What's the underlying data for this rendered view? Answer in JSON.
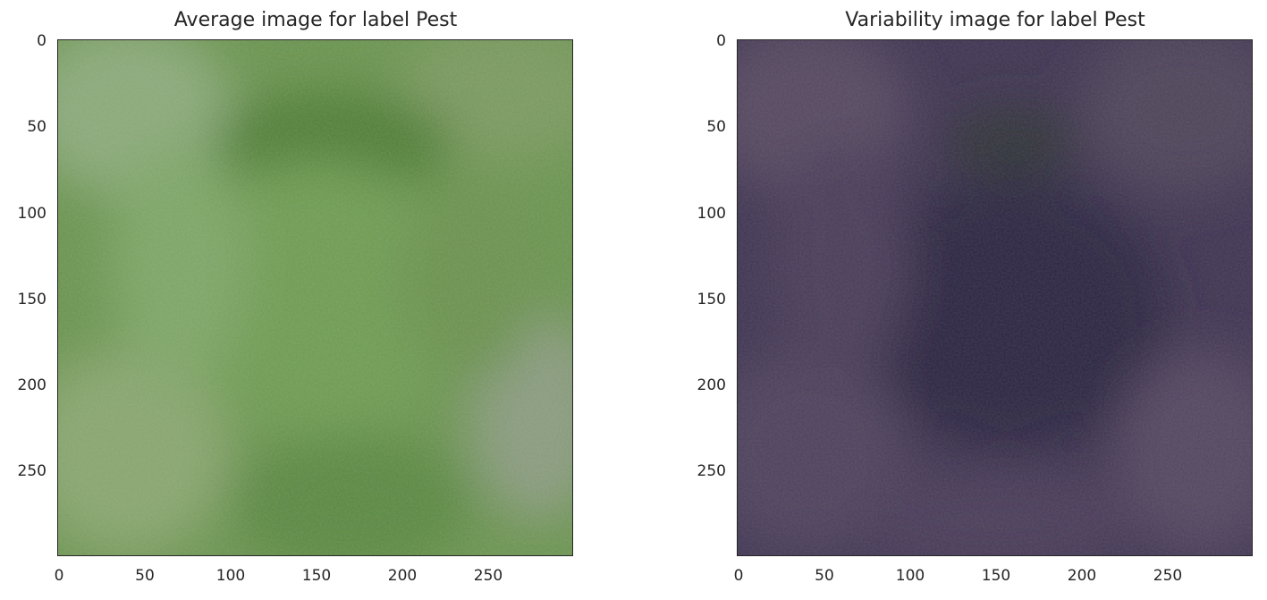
{
  "panels": [
    {
      "title": "Average image for label Pest",
      "image_description": "blurry average of green grass/leaf images",
      "xticks": [
        "0",
        "50",
        "100",
        "150",
        "200",
        "250"
      ],
      "yticks": [
        "0",
        "50",
        "100",
        "150",
        "200",
        "250"
      ],
      "colors": {
        "base": "#6a9250",
        "light": "#8aa87a",
        "dark": "#4e7a36",
        "edge": "#5e7a48"
      }
    },
    {
      "title": "Variability image for label Pest",
      "image_description": "dark purple standard-deviation image",
      "xticks": [
        "0",
        "50",
        "100",
        "150",
        "200",
        "250"
      ],
      "yticks": [
        "0",
        "50",
        "100",
        "150",
        "200",
        "250"
      ],
      "colors": {
        "base": "#3e3550",
        "light": "#5a4a66",
        "dark": "#2a2640",
        "edge": "#443a50"
      }
    }
  ]
}
